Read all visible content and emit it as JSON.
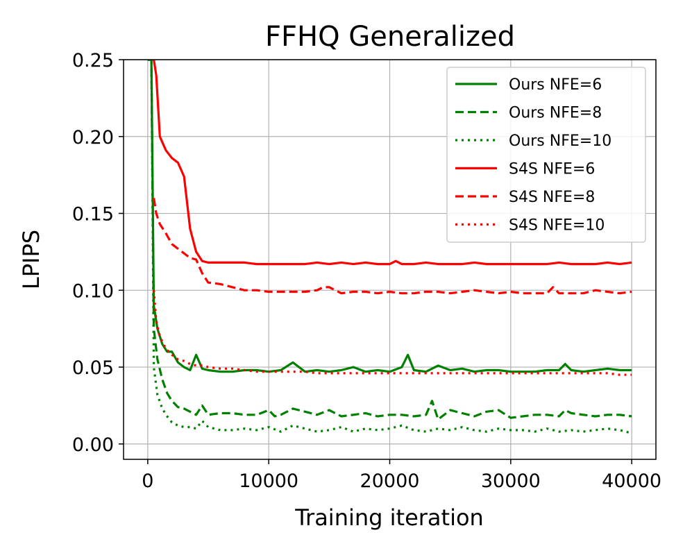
{
  "chart_data": {
    "type": "line",
    "title": "FFHQ Generalized",
    "xlabel": "Training iteration",
    "ylabel": "LPIPS",
    "xlim": [
      -2000,
      42000
    ],
    "ylim": [
      -0.01,
      0.25
    ],
    "xticks": [
      0,
      10000,
      20000,
      30000,
      40000
    ],
    "xtick_labels": [
      "0",
      "10000",
      "20000",
      "30000",
      "40000"
    ],
    "yticks": [
      0.0,
      0.05,
      0.1,
      0.15,
      0.2,
      0.25
    ],
    "ytick_labels": [
      "0.00",
      "0.05",
      "0.10",
      "0.15",
      "0.20",
      "0.25"
    ],
    "grid": true,
    "legend_position": "top-right",
    "series": [
      {
        "name": "Ours NFE=6",
        "color": "#008000",
        "linestyle": "solid",
        "x": [
          0,
          300,
          500,
          800,
          1200,
          1600,
          2000,
          2500,
          3000,
          3500,
          4000,
          4500,
          5000,
          6000,
          7000,
          8000,
          9000,
          10000,
          11000,
          12000,
          13000,
          14000,
          15000,
          16000,
          17000,
          18000,
          19000,
          20000,
          21000,
          21500,
          22000,
          23000,
          24000,
          25000,
          26000,
          27000,
          28000,
          29000,
          30000,
          31000,
          32000,
          33000,
          34000,
          34500,
          35000,
          36000,
          37000,
          38000,
          39000,
          40000
        ],
        "y": [
          0.25,
          0.25,
          0.09,
          0.075,
          0.065,
          0.06,
          0.06,
          0.053,
          0.05,
          0.048,
          0.058,
          0.049,
          0.048,
          0.047,
          0.047,
          0.048,
          0.048,
          0.047,
          0.048,
          0.053,
          0.047,
          0.048,
          0.047,
          0.048,
          0.05,
          0.047,
          0.048,
          0.047,
          0.05,
          0.058,
          0.048,
          0.047,
          0.051,
          0.048,
          0.049,
          0.047,
          0.048,
          0.048,
          0.047,
          0.047,
          0.047,
          0.048,
          0.048,
          0.052,
          0.048,
          0.047,
          0.048,
          0.049,
          0.048,
          0.048
        ]
      },
      {
        "name": "Ours NFE=8",
        "color": "#008000",
        "linestyle": "dashed",
        "x": [
          0,
          300,
          500,
          800,
          1200,
          1600,
          2000,
          2500,
          3000,
          3500,
          4000,
          4500,
          5000,
          6000,
          7000,
          8000,
          9000,
          10000,
          10500,
          11000,
          12000,
          13000,
          14000,
          15000,
          16000,
          17000,
          18000,
          19000,
          20000,
          21000,
          22000,
          23000,
          23500,
          24000,
          25000,
          26000,
          27000,
          28000,
          29000,
          30000,
          31000,
          32000,
          33000,
          34000,
          34500,
          35000,
          36000,
          37000,
          38000,
          39000,
          40000
        ],
        "y": [
          0.25,
          0.25,
          0.075,
          0.055,
          0.042,
          0.033,
          0.028,
          0.024,
          0.023,
          0.021,
          0.019,
          0.025,
          0.019,
          0.02,
          0.02,
          0.019,
          0.019,
          0.022,
          0.018,
          0.019,
          0.023,
          0.021,
          0.019,
          0.022,
          0.018,
          0.019,
          0.02,
          0.018,
          0.019,
          0.019,
          0.018,
          0.019,
          0.028,
          0.016,
          0.022,
          0.02,
          0.018,
          0.021,
          0.022,
          0.017,
          0.018,
          0.019,
          0.019,
          0.018,
          0.022,
          0.02,
          0.019,
          0.018,
          0.019,
          0.019,
          0.018
        ]
      },
      {
        "name": "Ours NFE=10",
        "color": "#008000",
        "linestyle": "dotted",
        "x": [
          0,
          300,
          500,
          800,
          1200,
          1600,
          2000,
          2500,
          3000,
          3500,
          4000,
          4500,
          5000,
          6000,
          7000,
          8000,
          9000,
          10000,
          11000,
          12000,
          13000,
          14000,
          15000,
          16000,
          17000,
          18000,
          19000,
          20000,
          21000,
          22000,
          23000,
          24000,
          25000,
          26000,
          27000,
          28000,
          29000,
          30000,
          31000,
          32000,
          33000,
          34000,
          35000,
          36000,
          37000,
          38000,
          39000,
          40000
        ],
        "y": [
          0.25,
          0.25,
          0.05,
          0.032,
          0.023,
          0.018,
          0.014,
          0.012,
          0.011,
          0.011,
          0.01,
          0.015,
          0.011,
          0.009,
          0.009,
          0.01,
          0.009,
          0.011,
          0.008,
          0.012,
          0.01,
          0.008,
          0.009,
          0.011,
          0.008,
          0.01,
          0.009,
          0.01,
          0.012,
          0.009,
          0.008,
          0.01,
          0.009,
          0.011,
          0.009,
          0.008,
          0.01,
          0.009,
          0.009,
          0.008,
          0.01,
          0.008,
          0.009,
          0.008,
          0.009,
          0.01,
          0.009,
          0.007
        ]
      },
      {
        "name": "S4S NFE=6",
        "color": "#ff0000",
        "linestyle": "solid",
        "x": [
          500,
          700,
          1000,
          1500,
          2000,
          2500,
          3000,
          3500,
          4000,
          4500,
          5000,
          6000,
          7000,
          8000,
          9000,
          10000,
          11000,
          12000,
          13000,
          14000,
          15000,
          16000,
          17000,
          18000,
          19000,
          20000,
          20500,
          21000,
          22000,
          23000,
          24000,
          25000,
          26000,
          27000,
          28000,
          29000,
          30000,
          31000,
          32000,
          33000,
          34000,
          35000,
          36000,
          37000,
          38000,
          39000,
          40000
        ],
        "y": [
          0.25,
          0.24,
          0.2,
          0.191,
          0.186,
          0.183,
          0.174,
          0.14,
          0.125,
          0.119,
          0.118,
          0.118,
          0.118,
          0.118,
          0.117,
          0.117,
          0.117,
          0.117,
          0.117,
          0.118,
          0.117,
          0.118,
          0.117,
          0.118,
          0.117,
          0.117,
          0.119,
          0.117,
          0.117,
          0.118,
          0.117,
          0.117,
          0.117,
          0.118,
          0.117,
          0.117,
          0.117,
          0.117,
          0.117,
          0.117,
          0.118,
          0.117,
          0.117,
          0.117,
          0.118,
          0.117,
          0.118
        ]
      },
      {
        "name": "S4S NFE=8",
        "color": "#ff0000",
        "linestyle": "dashed",
        "x": [
          500,
          700,
          1000,
          1500,
          2000,
          2500,
          3000,
          3500,
          4000,
          4500,
          5000,
          6000,
          7000,
          8000,
          9000,
          10000,
          11000,
          12000,
          13000,
          14000,
          14500,
          15000,
          16000,
          17000,
          18000,
          19000,
          20000,
          21000,
          22000,
          23000,
          24000,
          25000,
          26000,
          27000,
          28000,
          29000,
          30000,
          31000,
          32000,
          33000,
          33500,
          34000,
          35000,
          36000,
          37000,
          38000,
          39000,
          40000
        ],
        "y": [
          0.16,
          0.15,
          0.143,
          0.137,
          0.13,
          0.127,
          0.124,
          0.121,
          0.12,
          0.111,
          0.105,
          0.104,
          0.102,
          0.1,
          0.1,
          0.099,
          0.099,
          0.099,
          0.099,
          0.1,
          0.102,
          0.102,
          0.098,
          0.099,
          0.099,
          0.098,
          0.099,
          0.098,
          0.098,
          0.099,
          0.099,
          0.098,
          0.099,
          0.1,
          0.099,
          0.098,
          0.099,
          0.098,
          0.098,
          0.098,
          0.102,
          0.098,
          0.098,
          0.098,
          0.1,
          0.099,
          0.098,
          0.099
        ]
      },
      {
        "name": "S4S NFE=10",
        "color": "#ff0000",
        "linestyle": "dotted",
        "x": [
          500,
          700,
          1000,
          1500,
          2000,
          2500,
          3000,
          3500,
          4000,
          4500,
          5000,
          6000,
          7000,
          8000,
          9000,
          10000,
          11000,
          12000,
          13000,
          14000,
          15000,
          16000,
          17000,
          18000,
          19000,
          20000,
          21000,
          22000,
          23000,
          24000,
          25000,
          26000,
          27000,
          28000,
          29000,
          30000,
          31000,
          32000,
          33000,
          34000,
          35000,
          36000,
          37000,
          38000,
          39000,
          40000
        ],
        "y": [
          0.1,
          0.08,
          0.07,
          0.062,
          0.058,
          0.055,
          0.054,
          0.052,
          0.051,
          0.051,
          0.05,
          0.049,
          0.049,
          0.048,
          0.047,
          0.047,
          0.047,
          0.047,
          0.047,
          0.046,
          0.046,
          0.046,
          0.046,
          0.046,
          0.046,
          0.046,
          0.046,
          0.046,
          0.046,
          0.046,
          0.046,
          0.046,
          0.046,
          0.046,
          0.046,
          0.046,
          0.046,
          0.046,
          0.046,
          0.046,
          0.046,
          0.046,
          0.046,
          0.046,
          0.045,
          0.045
        ]
      }
    ]
  }
}
